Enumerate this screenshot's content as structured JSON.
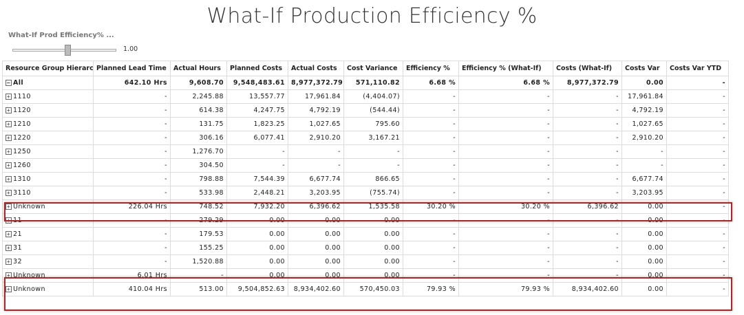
{
  "title": "What-If Production Efficiency %",
  "slicer": {
    "label": "What-If Prod Efficiency% ...",
    "value": "1.00"
  },
  "colors": {
    "highlight": "#a12a2a",
    "grid": "#dcdcdc"
  },
  "table": {
    "headers": [
      "Resource Group Hierarchy",
      "Planned Lead Time",
      "Actual Hours",
      "Planned Costs",
      "Actual Costs",
      "Cost Variance",
      "Efficiency %",
      "Efficiency % (What-If)",
      "Costs (What-If)",
      "Costs Var",
      "Costs Var YTD"
    ],
    "total": {
      "toggle": "−",
      "label": "All",
      "cells": [
        "642.10 Hrs",
        "9,608.70",
        "9,548,483.61",
        "8,977,372.79",
        "571,110.82",
        "6.68 %",
        "6.68 %",
        "8,977,372.79",
        "0.00",
        "-"
      ]
    },
    "rows": [
      {
        "toggle": "+",
        "label": "1110",
        "cells": [
          "-",
          "2,245.88",
          "13,557.77",
          "17,961.84",
          "(4,404.07)",
          "-",
          "-",
          "-",
          "17,961.84",
          "-"
        ]
      },
      {
        "toggle": "+",
        "label": "1120",
        "cells": [
          "-",
          "614.38",
          "4,247.75",
          "4,792.19",
          "(544.44)",
          "-",
          "-",
          "-",
          "4,792.19",
          "-"
        ]
      },
      {
        "toggle": "+",
        "label": "1210",
        "cells": [
          "-",
          "131.75",
          "1,823.25",
          "1,027.65",
          "795.60",
          "-",
          "-",
          "-",
          "1,027.65",
          "-"
        ]
      },
      {
        "toggle": "+",
        "label": "1220",
        "cells": [
          "-",
          "306.16",
          "6,077.41",
          "2,910.20",
          "3,167.21",
          "-",
          "-",
          "-",
          "2,910.20",
          "-"
        ]
      },
      {
        "toggle": "+",
        "label": "1250",
        "cells": [
          "-",
          "1,276.70",
          "-",
          "-",
          "-",
          "-",
          "-",
          "-",
          "-",
          "-"
        ]
      },
      {
        "toggle": "+",
        "label": "1260",
        "cells": [
          "-",
          "304.50",
          "-",
          "-",
          "-",
          "-",
          "-",
          "-",
          "-",
          "-"
        ]
      },
      {
        "toggle": "+",
        "label": "1310",
        "cells": [
          "-",
          "798.88",
          "7,544.39",
          "6,677.74",
          "866.65",
          "-",
          "-",
          "-",
          "6,677.74",
          "-"
        ]
      },
      {
        "toggle": "+",
        "label": "3110",
        "cells": [
          "-",
          "533.98",
          "2,448.21",
          "3,203.95",
          "(755.74)",
          "-",
          "-",
          "-",
          "3,203.95",
          "-"
        ]
      },
      {
        "toggle": "+",
        "label": "Unknown",
        "cells": [
          "226.04 Hrs",
          "748.52",
          "7,932.20",
          "6,396.62",
          "1,535.58",
          "30.20 %",
          "30.20 %",
          "6,396.62",
          "0.00",
          "-"
        ]
      },
      {
        "toggle": "+",
        "label": "11",
        "cells": [
          "-",
          "279.29",
          "0.00",
          "0.00",
          "0.00",
          "-",
          "-",
          "-",
          "0.00",
          "-"
        ]
      },
      {
        "toggle": "+",
        "label": "21",
        "cells": [
          "-",
          "179.53",
          "0.00",
          "0.00",
          "0.00",
          "-",
          "-",
          "-",
          "0.00",
          "-"
        ]
      },
      {
        "toggle": "+",
        "label": "31",
        "cells": [
          "-",
          "155.25",
          "0.00",
          "0.00",
          "0.00",
          "-",
          "-",
          "-",
          "0.00",
          "-"
        ]
      },
      {
        "toggle": "+",
        "label": "32",
        "cells": [
          "-",
          "1,520.88",
          "0.00",
          "0.00",
          "0.00",
          "-",
          "-",
          "-",
          "0.00",
          "-"
        ]
      },
      {
        "toggle": "+",
        "label": "Unknown",
        "cells": [
          "6.01 Hrs",
          "-",
          "0.00",
          "0.00",
          "0.00",
          "-",
          "-",
          "-",
          "0.00",
          "-"
        ]
      },
      {
        "toggle": "+",
        "label": "Unknown",
        "cells": [
          "410.04 Hrs",
          "513.00",
          "9,504,852.63",
          "8,934,402.60",
          "570,450.03",
          "79.93 %",
          "79.93 %",
          "8,934,402.60",
          "0.00",
          "-"
        ]
      }
    ]
  }
}
